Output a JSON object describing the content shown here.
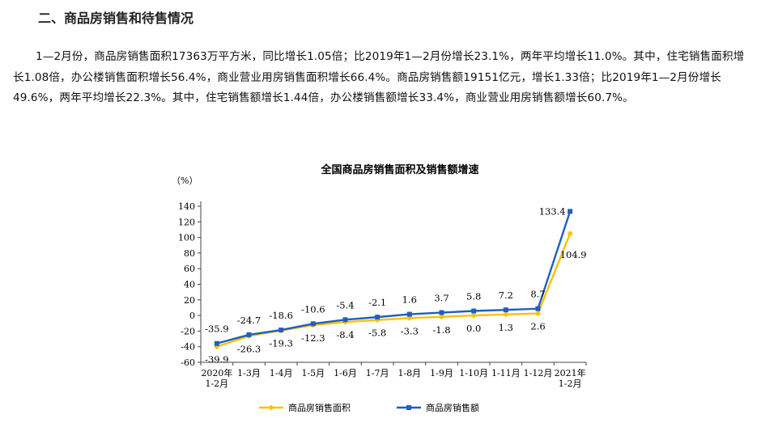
{
  "section": {
    "title": "二、商品房销售和待售情况"
  },
  "paragraph": "1—2月份，商品房销售面积17363万平方米，同比增长1.05倍；比2019年1—2月份增长23.1%，两年平均增长11.0%。其中，住宅销售面积增长1.08倍，办公楼销售面积增长56.4%，商业营业用房销售面积增长66.4%。商品房销售额19151亿元，增长1.33倍；比2019年1—2月份增长49.6%，两年平均增长22.3%。其中，住宅销售额增长1.44倍，办公楼销售额增长33.4%，商业营业用房销售额增长60.7%。",
  "chart_data": {
    "type": "line",
    "title": "全国商品房销售面积及销售额增速",
    "ylabel": "（%）",
    "xlabel": "",
    "ylim": [
      -60,
      140
    ],
    "yticks": [
      -60,
      -40,
      -20,
      0,
      20,
      40,
      60,
      80,
      100,
      120,
      140
    ],
    "grid": false,
    "legend": "bottom",
    "categories": [
      [
        "2020年",
        "1-2月"
      ],
      [
        "1-3月"
      ],
      [
        "1-4月"
      ],
      [
        "1-5月"
      ],
      [
        "1-6月"
      ],
      [
        "1-7月"
      ],
      [
        "1-8月"
      ],
      [
        "1-9月"
      ],
      [
        "1-10月"
      ],
      [
        "1-11月"
      ],
      [
        "1-12月"
      ],
      [
        "2021年",
        "1-2月"
      ]
    ],
    "series": [
      {
        "name": "商品房销售面积",
        "color": "#FFC000",
        "marker": "diamond",
        "values": [
          -39.9,
          -26.3,
          -19.3,
          -12.3,
          -8.4,
          -5.8,
          -3.3,
          -1.8,
          0.0,
          1.3,
          2.6,
          104.9
        ],
        "labels": [
          "-39.9",
          "-26.3",
          "-19.3",
          "-12.3",
          "-8.4",
          "-5.8",
          "-3.3",
          "-1.8",
          "0.0",
          "1.3",
          "2.6",
          "104.9"
        ]
      },
      {
        "name": "商品房销售额",
        "color": "#1F5FBF",
        "marker": "square",
        "values": [
          -35.9,
          -24.7,
          -18.6,
          -10.6,
          -5.4,
          -2.1,
          1.6,
          3.7,
          5.8,
          7.2,
          8.7,
          133.4
        ],
        "labels": [
          "-35.9",
          "-24.7",
          "-18.6",
          "-10.6",
          "-5.4",
          "-2.1",
          "1.6",
          "3.7",
          "5.8",
          "7.2",
          "8.7",
          "133.4"
        ]
      }
    ]
  }
}
